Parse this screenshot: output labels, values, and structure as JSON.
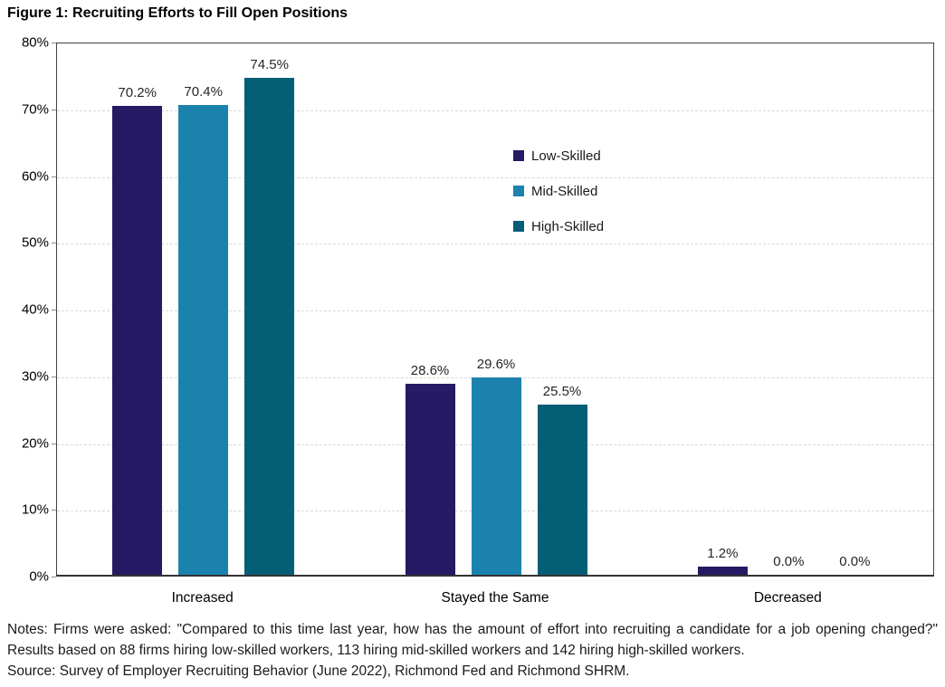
{
  "chart_data": {
    "type": "bar",
    "title": "Figure 1: Recruiting Efforts to Fill Open Positions",
    "categories": [
      "Increased",
      "Stayed the Same",
      "Decreased"
    ],
    "series": [
      {
        "name": "Low-Skilled",
        "color": "#251A63",
        "values": [
          70.2,
          28.6,
          1.2
        ]
      },
      {
        "name": "Mid-Skilled",
        "color": "#1B81AD",
        "values": [
          70.4,
          29.6,
          0.0
        ]
      },
      {
        "name": "High-Skilled",
        "color": "#045E76",
        "values": [
          74.5,
          25.5,
          0.0
        ]
      }
    ],
    "data_labels": [
      "70.2%",
      "70.4%",
      "74.5%",
      "28.6%",
      "29.6%",
      "25.5%",
      "1.2%",
      "0.0%",
      "0.0%"
    ],
    "y_ticks": [
      "0%",
      "10%",
      "20%",
      "30%",
      "40%",
      "50%",
      "60%",
      "70%",
      "80%"
    ],
    "ylim": [
      0,
      80
    ],
    "xlabel": "",
    "ylabel": "",
    "grid": "horizontal-dashed",
    "legend_position": "inside-upper-middle",
    "colors": {
      "gridline": "#d9d9d9",
      "frame": "#404040",
      "value_label": "#262626",
      "axis_text": "#000000"
    }
  },
  "notes": {
    "text": "Notes: Firms were asked: \"Compared to this time last year, how has the amount of effort into recruiting a candidate for a job opening changed?\" Results based on 88 firms hiring low-skilled workers, 113 hiring mid-skilled workers and 142 hiring high-skilled workers.",
    "source": "Source: Survey of Employer Recruiting Behavior (June 2022), Richmond Fed and Richmond SHRM."
  }
}
